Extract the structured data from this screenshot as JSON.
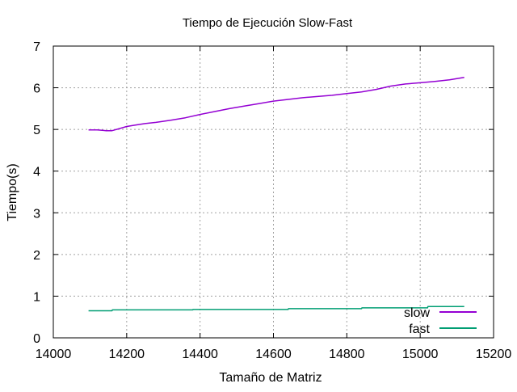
{
  "chart_data": {
    "type": "line",
    "title": "Tiempo de Ejecución Slow-Fast",
    "xlabel": "Tamaño de Matriz",
    "ylabel": "Tiempo(s)",
    "xlim": [
      14000,
      15200
    ],
    "ylim": [
      0,
      7
    ],
    "x_ticks": [
      14000,
      14200,
      14400,
      14600,
      14800,
      15000,
      15200
    ],
    "y_ticks": [
      0,
      1,
      2,
      3,
      4,
      5,
      6,
      7
    ],
    "grid": true,
    "legend_position": "bottom-right",
    "series": [
      {
        "name": "slow",
        "color": "#9400d3",
        "x": [
          14096,
          14120,
          14144,
          14160,
          14180,
          14200,
          14220,
          14250,
          14280,
          14320,
          14360,
          14400,
          14440,
          14480,
          14520,
          14560,
          14600,
          14640,
          14680,
          14720,
          14760,
          14800,
          14840,
          14880,
          14920,
          14960,
          15000,
          15040,
          15080,
          15120
        ],
        "y": [
          4.99,
          4.99,
          4.97,
          4.97,
          5.02,
          5.07,
          5.1,
          5.14,
          5.17,
          5.22,
          5.28,
          5.36,
          5.43,
          5.5,
          5.56,
          5.62,
          5.68,
          5.72,
          5.76,
          5.79,
          5.82,
          5.86,
          5.9,
          5.96,
          6.04,
          6.09,
          6.12,
          6.15,
          6.19,
          6.25
        ]
      },
      {
        "name": "fast",
        "color": "#009e73",
        "x": [
          14096,
          14160,
          14161,
          14380,
          14381,
          14640,
          14641,
          14840,
          14841,
          15020,
          15021,
          15120
        ],
        "y": [
          0.65,
          0.65,
          0.67,
          0.67,
          0.68,
          0.68,
          0.7,
          0.7,
          0.72,
          0.72,
          0.75,
          0.75
        ]
      }
    ]
  }
}
